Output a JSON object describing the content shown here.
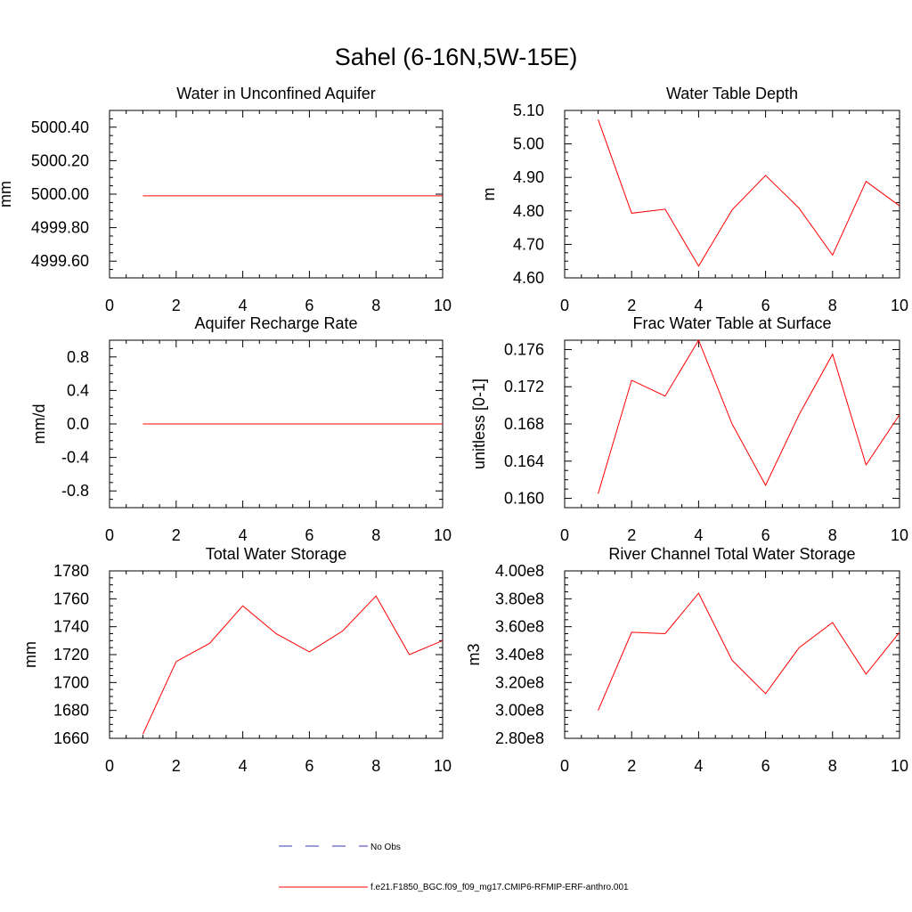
{
  "title": "Sahel (6-16N,5W-15E)",
  "colors": {
    "model": "#ff0000",
    "obs": "#3a3ab4",
    "axis": "#000000"
  },
  "legend": {
    "obs_label": "No Obs",
    "model_label": "f.e21.F1850_BGC.f09_f09_mg17.CMIP6-RFMIP-ERF-anthro.001"
  },
  "chart_data": [
    {
      "type": "line",
      "title": "Water in Unconfined Aquifer",
      "ylabel": "mm",
      "xlim": [
        0,
        10
      ],
      "ylim": [
        4999.5,
        5000.5
      ],
      "xticks": [
        "0",
        "2",
        "4",
        "6",
        "8",
        "10"
      ],
      "yticks": [
        {
          "v": 4999.6,
          "label": "4999.60"
        },
        {
          "v": 4999.8,
          "label": "4999.80"
        },
        {
          "v": 5000.0,
          "label": "5000.00"
        },
        {
          "v": 5000.2,
          "label": "5000.20"
        },
        {
          "v": 5000.4,
          "label": "5000.40"
        }
      ],
      "x": [
        1,
        2,
        3,
        4,
        5,
        6,
        7,
        8,
        9,
        10
      ],
      "series": [
        {
          "values": [
            4999.99,
            4999.99,
            4999.99,
            4999.99,
            4999.99,
            4999.99,
            4999.99,
            4999.99,
            4999.99,
            4999.99
          ]
        }
      ]
    },
    {
      "type": "line",
      "title": "Water Table Depth",
      "ylabel": "m",
      "xlim": [
        0,
        10
      ],
      "ylim": [
        4.6,
        5.1
      ],
      "xticks": [
        "0",
        "2",
        "4",
        "6",
        "8",
        "10"
      ],
      "yticks": [
        {
          "v": 4.6,
          "label": "4.60"
        },
        {
          "v": 4.7,
          "label": "4.70"
        },
        {
          "v": 4.8,
          "label": "4.80"
        },
        {
          "v": 4.9,
          "label": "4.90"
        },
        {
          "v": 5.0,
          "label": "5.00"
        },
        {
          "v": 5.1,
          "label": "5.10"
        }
      ],
      "x": [
        1,
        2,
        3,
        4,
        5,
        6,
        7,
        8,
        9,
        10
      ],
      "series": [
        {
          "values": [
            5.073,
            4.793,
            4.805,
            4.635,
            4.803,
            4.906,
            4.808,
            4.668,
            4.888,
            4.815
          ]
        }
      ]
    },
    {
      "type": "line",
      "title": "Aquifer Recharge Rate",
      "ylabel": "mm/d",
      "xlim": [
        0,
        10
      ],
      "ylim": [
        -1.0,
        1.0
      ],
      "xticks": [
        "0",
        "2",
        "4",
        "6",
        "8",
        "10"
      ],
      "yticks": [
        {
          "v": -0.8,
          "label": "-0.8"
        },
        {
          "v": -0.4,
          "label": "-0.4"
        },
        {
          "v": 0.0,
          "label": "0.0"
        },
        {
          "v": 0.4,
          "label": "0.4"
        },
        {
          "v": 0.8,
          "label": "0.8"
        }
      ],
      "x": [
        1,
        2,
        3,
        4,
        5,
        6,
        7,
        8,
        9,
        10
      ],
      "series": [
        {
          "values": [
            0,
            0,
            0,
            0,
            0,
            0,
            0,
            0,
            0,
            0
          ]
        }
      ]
    },
    {
      "type": "line",
      "title": "Frac Water Table at Surface",
      "ylabel": "unitless [0-1]",
      "xlim": [
        0,
        10
      ],
      "ylim": [
        0.159,
        0.177
      ],
      "xticks": [
        "0",
        "2",
        "4",
        "6",
        "8",
        "10"
      ],
      "yticks": [
        {
          "v": 0.16,
          "label": "0.160"
        },
        {
          "v": 0.164,
          "label": "0.164"
        },
        {
          "v": 0.168,
          "label": "0.168"
        },
        {
          "v": 0.172,
          "label": "0.172"
        },
        {
          "v": 0.176,
          "label": "0.176"
        }
      ],
      "x": [
        1,
        2,
        3,
        4,
        5,
        6,
        7,
        8,
        9,
        10
      ],
      "series": [
        {
          "values": [
            0.1605,
            0.1727,
            0.171,
            0.177,
            0.168,
            0.1614,
            0.169,
            0.1755,
            0.1636,
            0.169
          ]
        }
      ]
    },
    {
      "type": "line",
      "title": "Total Water Storage",
      "ylabel": "mm",
      "xlim": [
        0,
        10
      ],
      "ylim": [
        1660,
        1780
      ],
      "xticks": [
        "0",
        "2",
        "4",
        "6",
        "8",
        "10"
      ],
      "yticks": [
        {
          "v": 1660,
          "label": "1660"
        },
        {
          "v": 1680,
          "label": "1680"
        },
        {
          "v": 1700,
          "label": "1700"
        },
        {
          "v": 1720,
          "label": "1720"
        },
        {
          "v": 1740,
          "label": "1740"
        },
        {
          "v": 1760,
          "label": "1760"
        },
        {
          "v": 1780,
          "label": "1780"
        }
      ],
      "x": [
        1,
        2,
        3,
        4,
        5,
        6,
        7,
        8,
        9,
        10
      ],
      "series": [
        {
          "values": [
            1663,
            1715,
            1728,
            1755,
            1735,
            1722,
            1737,
            1762,
            1720,
            1730
          ]
        }
      ]
    },
    {
      "type": "line",
      "title": "River Channel Total Water Storage",
      "ylabel": "m3",
      "xlim": [
        0,
        10
      ],
      "ylim": [
        2.8,
        4.0
      ],
      "xticks": [
        "0",
        "2",
        "4",
        "6",
        "8",
        "10"
      ],
      "yticks": [
        {
          "v": 2.8,
          "label": "2.80e8"
        },
        {
          "v": 3.0,
          "label": "3.00e8"
        },
        {
          "v": 3.2,
          "label": "3.20e8"
        },
        {
          "v": 3.4,
          "label": "3.40e8"
        },
        {
          "v": 3.6,
          "label": "3.60e8"
        },
        {
          "v": 3.8,
          "label": "3.80e8"
        },
        {
          "v": 4.0,
          "label": "4.00e8"
        }
      ],
      "x": [
        1,
        2,
        3,
        4,
        5,
        6,
        7,
        8,
        9,
        10
      ],
      "series": [
        {
          "values": [
            3.0,
            3.56,
            3.55,
            3.84,
            3.36,
            3.12,
            3.45,
            3.63,
            3.26,
            3.56
          ]
        }
      ]
    }
  ]
}
